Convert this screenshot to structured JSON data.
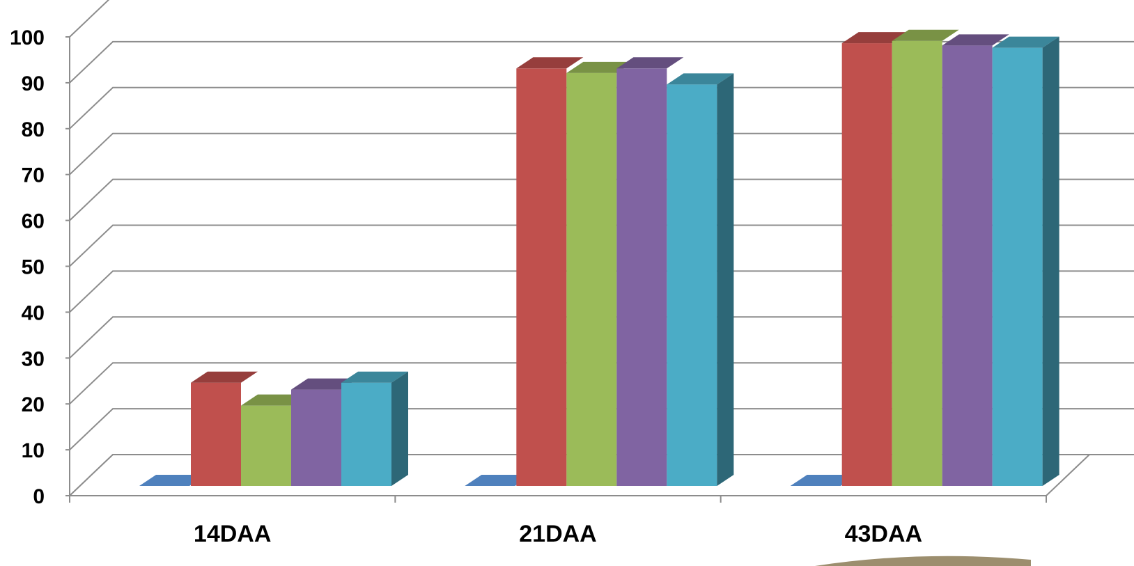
{
  "chart_data": {
    "type": "bar",
    "style": "3d-clustered-column",
    "categories": [
      "14DAA",
      "21DAA",
      "43DAA"
    ],
    "series": [
      {
        "values": [
          0,
          0,
          0
        ],
        "color": "#4F81BD"
      },
      {
        "values": [
          22.5,
          91,
          96.5
        ],
        "color": "#C0504D"
      },
      {
        "values": [
          17.5,
          90,
          97
        ],
        "color": "#9BBB59"
      },
      {
        "values": [
          21,
          91,
          96
        ],
        "color": "#8064A2"
      },
      {
        "values": [
          22.5,
          87.5,
          95.5
        ],
        "color": "#4BACC6"
      }
    ],
    "ylim": [
      0,
      100
    ],
    "yticks": [
      0,
      10,
      20,
      30,
      40,
      50,
      60,
      70,
      80,
      90,
      100
    ],
    "grid": true,
    "legend": "none"
  }
}
